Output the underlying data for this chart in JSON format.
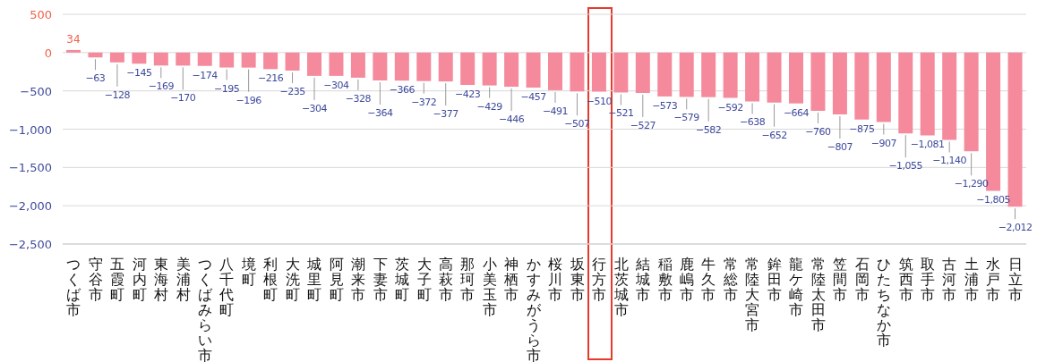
{
  "chart_data": {
    "type": "bar",
    "categories": [
      "つくば市",
      "守谷市",
      "五霞町",
      "河内町",
      "東海村",
      "美浦村",
      "つくばみらい市",
      "八千代町",
      "境町",
      "利根町",
      "大洗町",
      "城里町",
      "阿見町",
      "潮来市",
      "下妻市",
      "茨城町",
      "大子町",
      "高萩市",
      "那珂市",
      "小美玉市",
      "神栖市",
      "かすみがうら市",
      "桜川市",
      "坂東市",
      "行方市",
      "北茨城市",
      "結城市",
      "稲敷市",
      "鹿嶋市",
      "牛久市",
      "常総市",
      "常陸大宮市",
      "鉾田市",
      "龍ケ崎市",
      "常陸太田市",
      "笠間市",
      "石岡市",
      "ひたちなか市",
      "筑西市",
      "取手市",
      "古河市",
      "土浦市",
      "水戸市",
      "日立市"
    ],
    "values": [
      34,
      -63,
      -128,
      -145,
      -169,
      -170,
      -174,
      -195,
      -196,
      -216,
      -235,
      -304,
      -304,
      -328,
      -364,
      -366,
      -372,
      -377,
      -423,
      -429,
      -446,
      -457,
      -491,
      -507,
      -510,
      -521,
      -527,
      -573,
      -579,
      -582,
      -592,
      -638,
      -652,
      -664,
      -760,
      -807,
      -875,
      -907,
      -1055,
      -1081,
      -1140,
      -1290,
      -1805,
      -2012
    ],
    "value_labels": [
      "34",
      "−63",
      "−128",
      "−145",
      "−169",
      "−170",
      "−174",
      "−195",
      "−196",
      "−216",
      "−235",
      "−304",
      "−304",
      "−328",
      "−364",
      "−366",
      "−372",
      "−377",
      "−423",
      "−429",
      "−446",
      "−457",
      "−491",
      "−507",
      "−510",
      "−521",
      "−527",
      "−573",
      "−579",
      "−582",
      "−592",
      "−638",
      "−652",
      "−664",
      "−760",
      "−807",
      "−875",
      "−907",
      "−1,055",
      "−1,081",
      "−1,140",
      "−1,290",
      "−1,805",
      "−2,012"
    ],
    "color": "#f48a9c",
    "ylim": [
      -2500,
      500
    ],
    "yticks": [
      {
        "value": 500,
        "label": "500"
      },
      {
        "value": 0,
        "label": "0"
      },
      {
        "value": -500,
        "label": "−500"
      },
      {
        "value": -1000,
        "label": "−1,000"
      },
      {
        "value": -1500,
        "label": "−1,500"
      },
      {
        "value": -2000,
        "label": "−2,000"
      },
      {
        "value": -2500,
        "label": "−2,500"
      }
    ],
    "grid": "y"
  }
}
